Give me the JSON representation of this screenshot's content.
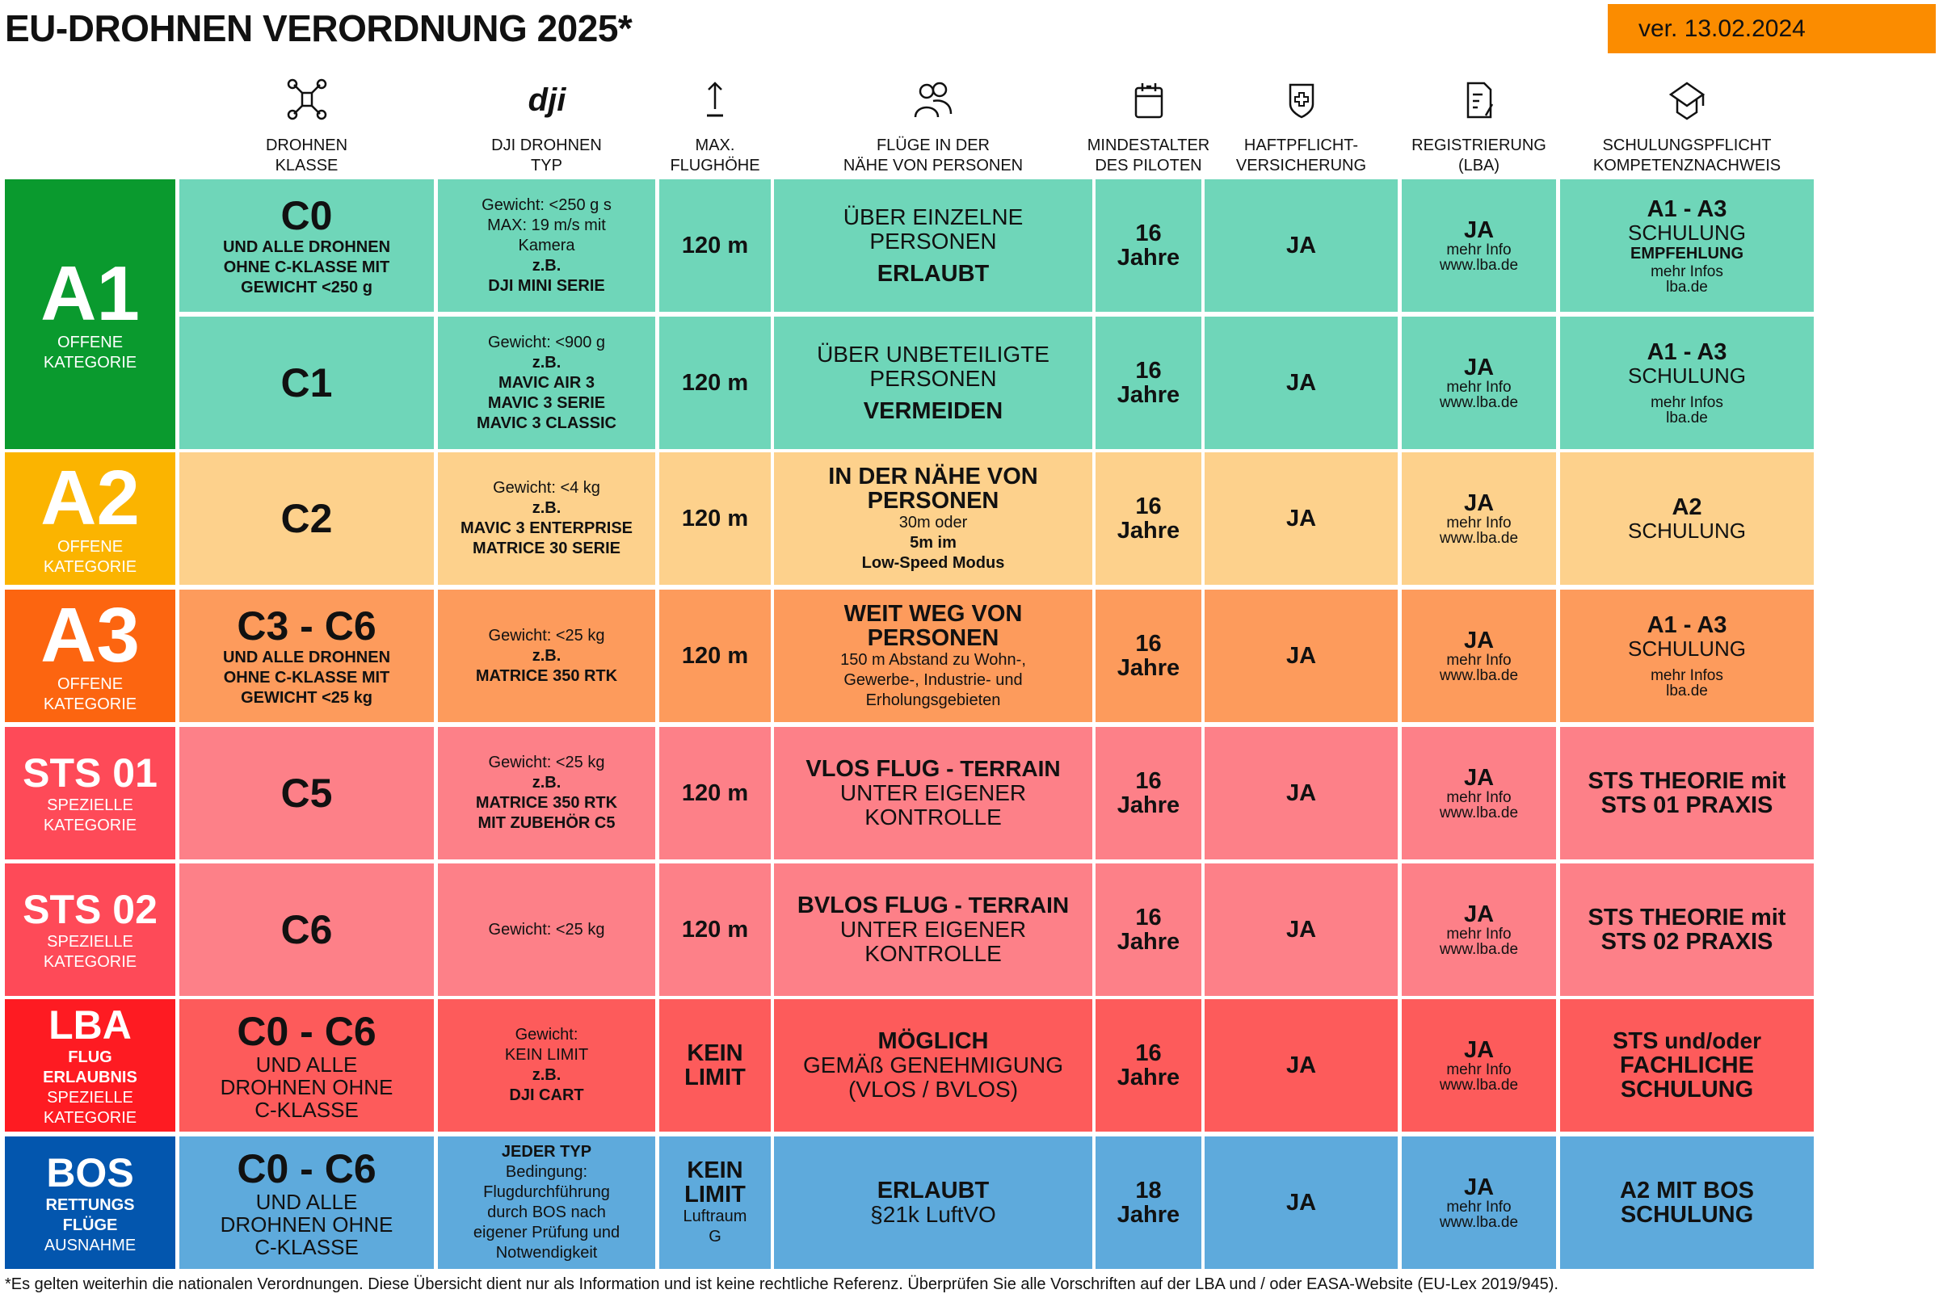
{
  "title": "EU-DROHNEN VERORDNUNG 2025*",
  "version": "ver. 13.02.2024",
  "footer": "*Es gelten weiterhin die nationalen Verordnungen. Diese Übersicht dient nur als Information und ist keine rechtliche Referenz. Überprüfen Sie alle Vorschriften auf der LBA und / oder EASA-Website (EU-Lex 2019/945).",
  "headers": [
    {
      "icon": "drone-icon",
      "lines": [
        "DROHNEN",
        "KLASSE"
      ]
    },
    {
      "icon": "dji-logo-icon",
      "lines": [
        "DJI DROHNEN",
        "TYP"
      ]
    },
    {
      "icon": "arrow-up-icon",
      "lines": [
        "MAX.",
        "FLUGHÖHE"
      ]
    },
    {
      "icon": "people-icon",
      "lines": [
        "FLÜGE IN DER",
        "NÄHE VON PERSONEN"
      ]
    },
    {
      "icon": "calendar-icon",
      "lines": [
        "MINDESTALTER",
        "DES PILOTEN"
      ]
    },
    {
      "icon": "shield-plus-icon",
      "lines": [
        "HAFTPFLICHT-",
        "VERSICHERUNG"
      ]
    },
    {
      "icon": "document-pen-icon",
      "lines": [
        "REGISTRIERUNG",
        "(LBA)"
      ]
    },
    {
      "icon": "graduation-cap-icon",
      "lines": [
        "SCHULUNGSPFLICHT",
        "KOMPETENZNACHWEIS"
      ]
    }
  ],
  "colors": {
    "A1": {
      "label": "#0a9a2e",
      "cell": "#6fd6b9"
    },
    "A2": {
      "label": "#fbb400",
      "cell": "#fdd18c"
    },
    "A3": {
      "label": "#fc6510",
      "cell": "#fd9b5c"
    },
    "STS": {
      "label": "#fe4a58",
      "cell": "#fd8088"
    },
    "LBA": {
      "label": "#fe1b22",
      "cell": "#fd5b5b"
    },
    "BOS": {
      "label": "#0356ae",
      "cell": "#5eaadc"
    },
    "version_bg": "#fb8c00"
  },
  "categories": [
    {
      "id": "A1",
      "lines": [
        {
          "s": "huge",
          "t": "A1"
        },
        {
          "s": "ws",
          "t": "OFFENE"
        },
        {
          "s": "ws",
          "t": "KATEGORIE"
        }
      ]
    },
    {
      "id": "A2",
      "lines": [
        {
          "s": "huge",
          "t": "A2"
        },
        {
          "s": "ws",
          "t": "OFFENE"
        },
        {
          "s": "ws",
          "t": "KATEGORIE"
        }
      ]
    },
    {
      "id": "A3",
      "lines": [
        {
          "s": "huge",
          "t": "A3"
        },
        {
          "s": "ws",
          "t": "OFFENE"
        },
        {
          "s": "ws",
          "t": "KATEGORIE"
        }
      ]
    },
    {
      "id": "STS",
      "lines": [
        {
          "s": "lbl",
          "t": "STS 01"
        },
        {
          "s": "ws",
          "t": "SPEZIELLE"
        },
        {
          "s": "ws",
          "t": "KATEGORIE"
        }
      ]
    },
    {
      "id": "STS",
      "lines": [
        {
          "s": "lbl",
          "t": "STS 02"
        },
        {
          "s": "ws",
          "t": "SPEZIELLE"
        },
        {
          "s": "ws",
          "t": "KATEGORIE"
        }
      ]
    },
    {
      "id": "LBA",
      "lines": [
        {
          "s": "lbl",
          "t": "LBA"
        },
        {
          "s": "wb",
          "t": "FLUG"
        },
        {
          "s": "wb",
          "t": "ERLAUBNIS"
        },
        {
          "s": "ws",
          "t": "SPEZIELLE"
        },
        {
          "s": "ws",
          "t": "KATEGORIE"
        }
      ]
    },
    {
      "id": "BOS",
      "lines": [
        {
          "s": "lbl",
          "t": "BOS"
        },
        {
          "s": "wb",
          "t": "RETTUNGS"
        },
        {
          "s": "wb",
          "t": "FLÜGE"
        },
        {
          "s": "ws",
          "t": "AUSNAHME"
        }
      ]
    }
  ],
  "rows": [
    {
      "color": "A1",
      "cells": [
        [
          {
            "s": "xl",
            "t": "C0"
          },
          {
            "s": "b",
            "t": "UND ALLE DROHNEN"
          },
          {
            "s": "b",
            "t": "OHNE C-KLASSE MIT"
          },
          {
            "s": "b",
            "t": "GEWICHT <250 g"
          }
        ],
        [
          {
            "s": "n",
            "t": "Gewicht: <250 g s"
          },
          {
            "s": "n",
            "t": "MAX: 19 m/s mit"
          },
          {
            "s": "n",
            "t": "Kamera"
          },
          {
            "s": "b",
            "t": "z.B."
          },
          {
            "s": "b",
            "t": "DJI MINI SERIE"
          }
        ],
        [
          {
            "s": "mb",
            "t": "120 m"
          }
        ],
        [
          {
            "s": "mm",
            "t": "ÜBER EINZELNE"
          },
          {
            "s": "mm",
            "t": "PERSONEN"
          },
          {
            "s": "sp",
            "t": ""
          },
          {
            "s": "mb",
            "t": "ERLAUBT"
          }
        ],
        [
          {
            "s": "mb",
            "t": "16"
          },
          {
            "s": "mb",
            "t": "Jahre"
          }
        ],
        [
          {
            "s": "mb",
            "t": "JA"
          }
        ],
        [
          {
            "s": "mb",
            "t": "JA"
          },
          {
            "s": "n2",
            "t": "mehr Info"
          },
          {
            "s": "n2",
            "t": "www.lba.de"
          }
        ],
        [
          {
            "s": "mb",
            "t": "A1 - A3"
          },
          {
            "s": "sc",
            "t": "SCHULUNG"
          },
          {
            "s": "b",
            "t": "EMPFEHLUNG"
          },
          {
            "s": "n2",
            "t": "mehr Infos"
          },
          {
            "s": "n2",
            "t": "lba.de"
          }
        ]
      ]
    },
    {
      "color": "A1",
      "cells": [
        [
          {
            "s": "xl",
            "t": "C1"
          }
        ],
        [
          {
            "s": "n",
            "t": "Gewicht: <900 g"
          },
          {
            "s": "b",
            "t": "z.B."
          },
          {
            "s": "b",
            "t": "MAVIC AIR 3"
          },
          {
            "s": "b",
            "t": "MAVIC 3 SERIE"
          },
          {
            "s": "b",
            "t": "MAVIC 3 CLASSIC"
          }
        ],
        [
          {
            "s": "mb",
            "t": "120 m"
          }
        ],
        [
          {
            "s": "mm",
            "t": "ÜBER UNBETEILIGTE"
          },
          {
            "s": "mm",
            "t": "PERSONEN"
          },
          {
            "s": "sp",
            "t": ""
          },
          {
            "s": "mb",
            "t": "VERMEIDEN"
          }
        ],
        [
          {
            "s": "mb",
            "t": "16"
          },
          {
            "s": "mb",
            "t": "Jahre"
          }
        ],
        [
          {
            "s": "mb",
            "t": "JA"
          }
        ],
        [
          {
            "s": "mb",
            "t": "JA"
          },
          {
            "s": "n2",
            "t": "mehr Info"
          },
          {
            "s": "n2",
            "t": "www.lba.de"
          }
        ],
        [
          {
            "s": "mb",
            "t": "A1 - A3"
          },
          {
            "s": "sc",
            "t": "SCHULUNG"
          },
          {
            "s": "sp",
            "t": ""
          },
          {
            "s": "n2",
            "t": "mehr Infos"
          },
          {
            "s": "n2",
            "t": "lba.de"
          }
        ]
      ]
    },
    {
      "color": "A2",
      "cells": [
        [
          {
            "s": "xl",
            "t": "C2"
          }
        ],
        [
          {
            "s": "n",
            "t": "Gewicht: <4 kg"
          },
          {
            "s": "b",
            "t": "z.B."
          },
          {
            "s": "b",
            "t": "MAVIC 3 ENTERPRISE"
          },
          {
            "s": "b",
            "t": "MATRICE 30 SERIE"
          }
        ],
        [
          {
            "s": "mb",
            "t": "120 m"
          }
        ],
        [
          {
            "s": "mb",
            "t": "IN DER NÄHE VON"
          },
          {
            "s": "mb",
            "t": "PERSONEN"
          },
          {
            "s": "n",
            "t": "30m oder"
          },
          {
            "s": "b",
            "t": "5m im"
          },
          {
            "s": "b",
            "t": "Low-Speed Modus"
          }
        ],
        [
          {
            "s": "mb",
            "t": "16"
          },
          {
            "s": "mb",
            "t": "Jahre"
          }
        ],
        [
          {
            "s": "mb",
            "t": "JA"
          }
        ],
        [
          {
            "s": "mb",
            "t": "JA"
          },
          {
            "s": "n2",
            "t": "mehr Info"
          },
          {
            "s": "n2",
            "t": "www.lba.de"
          }
        ],
        [
          {
            "s": "mb",
            "t": "A2"
          },
          {
            "s": "sc",
            "t": "SCHULUNG"
          }
        ]
      ]
    },
    {
      "color": "A3",
      "cells": [
        [
          {
            "s": "xl",
            "t": "C3 - C6"
          },
          {
            "s": "b",
            "t": "UND ALLE DROHNEN"
          },
          {
            "s": "b",
            "t": "OHNE C-KLASSE MIT"
          },
          {
            "s": "b",
            "t": "GEWICHT <25 kg"
          }
        ],
        [
          {
            "s": "n",
            "t": "Gewicht: <25 kg"
          },
          {
            "s": "b",
            "t": "z.B."
          },
          {
            "s": "b",
            "t": "MATRICE 350 RTK"
          }
        ],
        [
          {
            "s": "mb",
            "t": "120 m"
          }
        ],
        [
          {
            "s": "mb",
            "t": "WEIT WEG VON"
          },
          {
            "s": "mb",
            "t": "PERSONEN"
          },
          {
            "s": "n",
            "t": "150 m Abstand zu Wohn-,"
          },
          {
            "s": "n",
            "t": "Gewerbe-, Industrie- und"
          },
          {
            "s": "n",
            "t": "Erholungsgebieten"
          }
        ],
        [
          {
            "s": "mb",
            "t": "16"
          },
          {
            "s": "mb",
            "t": "Jahre"
          }
        ],
        [
          {
            "s": "mb",
            "t": "JA"
          }
        ],
        [
          {
            "s": "mb",
            "t": "JA"
          },
          {
            "s": "n2",
            "t": "mehr Info"
          },
          {
            "s": "n2",
            "t": "www.lba.de"
          }
        ],
        [
          {
            "s": "mb",
            "t": "A1 - A3"
          },
          {
            "s": "sc",
            "t": "SCHULUNG"
          },
          {
            "s": "sp",
            "t": ""
          },
          {
            "s": "n2",
            "t": "mehr Infos"
          },
          {
            "s": "n2",
            "t": "lba.de"
          }
        ]
      ]
    },
    {
      "color": "STS",
      "cells": [
        [
          {
            "s": "xl",
            "t": "C5"
          }
        ],
        [
          {
            "s": "n",
            "t": "Gewicht: <25 kg"
          },
          {
            "s": "b",
            "t": "z.B."
          },
          {
            "s": "b",
            "t": "MATRICE 350 RTK"
          },
          {
            "s": "b",
            "t": "MIT ZUBEHÖR C5"
          }
        ],
        [
          {
            "s": "mb",
            "t": "120 m"
          }
        ],
        [
          {
            "s": "mb",
            "t": "VLOS FLUG",
            "s2": "mm",
            "t2": " - TERRAIN"
          },
          {
            "s": "mm",
            "t": "UNTER EIGENER"
          },
          {
            "s": "mm",
            "t": "KONTROLLE"
          }
        ],
        [
          {
            "s": "mb",
            "t": "16"
          },
          {
            "s": "mb",
            "t": "Jahre"
          }
        ],
        [
          {
            "s": "mb",
            "t": "JA"
          }
        ],
        [
          {
            "s": "mb",
            "t": "JA"
          },
          {
            "s": "n2",
            "t": "mehr Info"
          },
          {
            "s": "n2",
            "t": "www.lba.de"
          }
        ],
        [
          {
            "s": "mb",
            "t": "STS THEORIE mit"
          },
          {
            "s": "mb",
            "t": "STS 01 PRAXIS"
          }
        ]
      ]
    },
    {
      "color": "STS",
      "cells": [
        [
          {
            "s": "xl",
            "t": "C6"
          }
        ],
        [
          {
            "s": "n",
            "t": "Gewicht: <25 kg"
          }
        ],
        [
          {
            "s": "mb",
            "t": "120 m"
          }
        ],
        [
          {
            "s": "mb",
            "t": "BVLOS FLUG",
            "s2": "mm",
            "t2": " - TERRAIN"
          },
          {
            "s": "mm",
            "t": "UNTER EIGENER"
          },
          {
            "s": "mm",
            "t": "KONTROLLE"
          }
        ],
        [
          {
            "s": "mb",
            "t": "16"
          },
          {
            "s": "mb",
            "t": "Jahre"
          }
        ],
        [
          {
            "s": "mb",
            "t": "JA"
          }
        ],
        [
          {
            "s": "mb",
            "t": "JA"
          },
          {
            "s": "n2",
            "t": "mehr Info"
          },
          {
            "s": "n2",
            "t": "www.lba.de"
          }
        ],
        [
          {
            "s": "mb",
            "t": "STS THEORIE mit"
          },
          {
            "s": "mb",
            "t": "STS 02 PRAXIS"
          }
        ]
      ]
    },
    {
      "color": "LBA",
      "cells": [
        [
          {
            "s": "xl",
            "t": "C0 - C6"
          },
          {
            "s": "sc",
            "t": "UND ALLE"
          },
          {
            "s": "sc",
            "t": "DROHNEN OHNE"
          },
          {
            "s": "sc",
            "t": "C-KLASSE"
          }
        ],
        [
          {
            "s": "n",
            "t": "Gewicht:"
          },
          {
            "s": "n",
            "t": "KEIN LIMIT"
          },
          {
            "s": "b",
            "t": "z.B."
          },
          {
            "s": "b",
            "t": "DJI CART"
          }
        ],
        [
          {
            "s": "mb",
            "t": "KEIN"
          },
          {
            "s": "mb",
            "t": "LIMIT"
          }
        ],
        [
          {
            "s": "mb",
            "t": "MÖGLICH"
          },
          {
            "s": "mm",
            "t": "GEMÄß GENEHMIGUNG"
          },
          {
            "s": "mm",
            "t": "(VLOS / BVLOS)"
          }
        ],
        [
          {
            "s": "mb",
            "t": "16"
          },
          {
            "s": "mb",
            "t": "Jahre"
          }
        ],
        [
          {
            "s": "mb",
            "t": "JA"
          }
        ],
        [
          {
            "s": "mb",
            "t": "JA"
          },
          {
            "s": "n2",
            "t": "mehr Info"
          },
          {
            "s": "n2",
            "t": "www.lba.de"
          }
        ],
        [
          {
            "s": "mb",
            "t": "STS",
            "s2": "mm",
            "t2": " und/oder"
          },
          {
            "s": "mb",
            "t": "FACHLICHE"
          },
          {
            "s": "mb",
            "t": "SCHULUNG"
          }
        ]
      ]
    },
    {
      "color": "BOS",
      "cells": [
        [
          {
            "s": "xl",
            "t": "C0 - C6"
          },
          {
            "s": "sc",
            "t": "UND ALLE"
          },
          {
            "s": "sc",
            "t": "DROHNEN OHNE"
          },
          {
            "s": "sc",
            "t": "C-KLASSE"
          }
        ],
        [
          {
            "s": "b",
            "t": "JEDER TYP"
          },
          {
            "s": "n",
            "t": "Bedingung:"
          },
          {
            "s": "n",
            "t": "Flugdurchführung"
          },
          {
            "s": "n",
            "t": "durch BOS nach"
          },
          {
            "s": "n",
            "t": "eigener Prüfung und"
          },
          {
            "s": "n",
            "t": "Notwendigkeit"
          }
        ],
        [
          {
            "s": "mb",
            "t": "KEIN"
          },
          {
            "s": "mb",
            "t": "LIMIT"
          },
          {
            "s": "n",
            "t": "Luftraum"
          },
          {
            "s": "n",
            "t": "G"
          }
        ],
        [
          {
            "s": "mb",
            "t": "ERLAUBT"
          },
          {
            "s": "mm",
            "t": "§21k LuftVO"
          }
        ],
        [
          {
            "s": "mb",
            "t": "18"
          },
          {
            "s": "mb",
            "t": "Jahre"
          }
        ],
        [
          {
            "s": "mb",
            "t": "JA"
          }
        ],
        [
          {
            "s": "mb",
            "t": "JA"
          },
          {
            "s": "n2",
            "t": "mehr Info"
          },
          {
            "s": "n2",
            "t": "www.lba.de"
          }
        ],
        [
          {
            "s": "mb",
            "t": "A2 MIT BOS"
          },
          {
            "s": "mb",
            "t": "SCHULUNG"
          }
        ]
      ]
    }
  ]
}
